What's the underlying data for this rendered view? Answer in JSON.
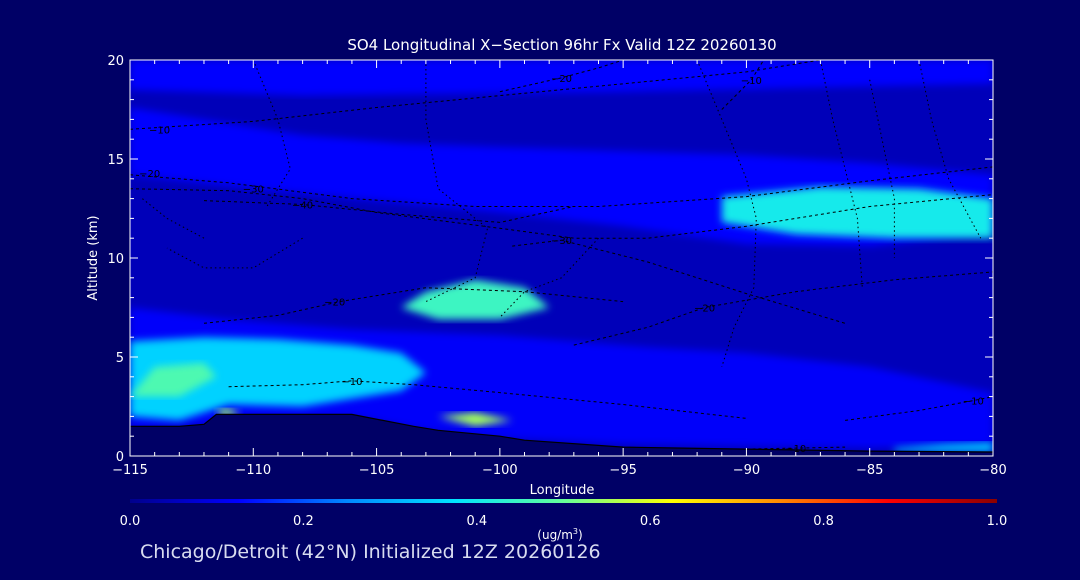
{
  "caption": "Chicago/Detroit (42°N) Initialized 12Z 20260126",
  "colors": {
    "background": "#000066",
    "axis": "#ffffff",
    "contour": "#000000"
  },
  "chart_data": {
    "type": "heatmap",
    "title": "SO4 Longitudinal X−Section 96hr  Fx Valid 12Z 20260130",
    "xlabel": "Longitude",
    "ylabel": "Altitude (km)",
    "xlim": [
      -115,
      -80
    ],
    "ylim": [
      0,
      20
    ],
    "x_ticks": [
      -115,
      -110,
      -105,
      -100,
      -95,
      -90,
      -85,
      -80
    ],
    "x_tick_labels": [
      "−115",
      "−110",
      "−105",
      "−100",
      "−95",
      "−90",
      "−85",
      "−80"
    ],
    "y_ticks": [
      0,
      5,
      10,
      15,
      20
    ],
    "y_tick_labels": [
      "0",
      "5",
      "10",
      "15",
      "20"
    ],
    "colorbar": {
      "min": 0.0,
      "max": 1.0,
      "tick_values": [
        0.0,
        0.2,
        0.4,
        0.6,
        0.8,
        1.0
      ],
      "tick_labels": [
        "0.0",
        "0.2",
        "0.4",
        "0.6",
        "0.8",
        "1.0"
      ],
      "unit_prefix": "(ug/m",
      "unit_sup": "3",
      "unit_suffix": ")",
      "colormap": [
        "#00008b",
        "#0000ff",
        "#0088ff",
        "#00e5ff",
        "#66ff99",
        "#ffff00",
        "#ff8800",
        "#ff0000",
        "#8b0000"
      ]
    },
    "field_regions": [
      {
        "name": "surface",
        "value": 0.05,
        "points": [
          [
            -115,
            0
          ],
          [
            -80,
            0
          ],
          [
            -80,
            20
          ],
          [
            -115,
            20
          ]
        ]
      },
      {
        "name": "upper-layer",
        "value": 0.13,
        "points": [
          [
            -115,
            20
          ],
          [
            -80,
            20
          ],
          [
            -80,
            18.8
          ],
          [
            -95,
            18.4
          ],
          [
            -108,
            18.2
          ],
          [
            -115,
            18.5
          ]
        ]
      },
      {
        "name": "mid-band",
        "value": 0.13,
        "points": [
          [
            -115,
            17.6
          ],
          [
            -112,
            17
          ],
          [
            -108,
            16.2
          ],
          [
            -104,
            15.8
          ],
          [
            -100,
            15.6
          ],
          [
            -95,
            15.4
          ],
          [
            -90,
            15.2
          ],
          [
            -85,
            14.8
          ],
          [
            -80,
            14.2
          ],
          [
            -80,
            11.3
          ],
          [
            -85,
            10.6
          ],
          [
            -90,
            10.7
          ],
          [
            -95,
            11.6
          ],
          [
            -100,
            12.3
          ],
          [
            -105,
            12.9
          ],
          [
            -110,
            13.5
          ],
          [
            -115,
            14.2
          ]
        ]
      },
      {
        "name": "lower-layer",
        "value": 0.12,
        "points": [
          [
            -115,
            7.5
          ],
          [
            -111,
            6.9
          ],
          [
            -106,
            6.4
          ],
          [
            -100,
            6.1
          ],
          [
            -97,
            5.8
          ],
          [
            -94,
            5.5
          ],
          [
            -90,
            5.2
          ],
          [
            -85,
            4.5
          ],
          [
            -80,
            3.2
          ],
          [
            -80,
            0.5
          ],
          [
            -85,
            0.4
          ],
          [
            -90,
            0.5
          ],
          [
            -95,
            0.6
          ],
          [
            -100,
            0.9
          ],
          [
            -103,
            1.3
          ],
          [
            -106,
            2.0
          ],
          [
            -110,
            2.0
          ],
          [
            -112,
            1.6
          ],
          [
            -115,
            1.4
          ]
        ]
      },
      {
        "name": "west-plume",
        "value": 0.35,
        "points": [
          [
            -115,
            5.8
          ],
          [
            -112,
            6.0
          ],
          [
            -109,
            5.9
          ],
          [
            -106,
            5.6
          ],
          [
            -104,
            5.2
          ],
          [
            -103,
            4.2
          ],
          [
            -104,
            3.3
          ],
          [
            -108,
            2.5
          ],
          [
            -111,
            2.6
          ],
          [
            -113,
            1.8
          ],
          [
            -115,
            2.0
          ]
        ]
      },
      {
        "name": "upper-jet-core",
        "value": 0.4,
        "points": [
          [
            -91,
            13.1
          ],
          [
            -87,
            13.6
          ],
          [
            -83,
            13.5
          ],
          [
            -80,
            13.0
          ],
          [
            -80,
            11.0
          ],
          [
            -84,
            11.0
          ],
          [
            -88,
            11.2
          ],
          [
            -91,
            11.8
          ]
        ]
      },
      {
        "name": "mid-plume",
        "value": 0.45,
        "points": [
          [
            -103,
            8.3
          ],
          [
            -101,
            8.9
          ],
          [
            -99,
            8.5
          ],
          [
            -98,
            7.5
          ],
          [
            -100,
            6.9
          ],
          [
            -102.5,
            6.9
          ],
          [
            -104,
            7.5
          ]
        ]
      },
      {
        "name": "west-core",
        "value": 0.47,
        "points": [
          [
            -115,
            3.0
          ],
          [
            -114,
            4.5
          ],
          [
            -112,
            4.7
          ],
          [
            -111.5,
            4.0
          ],
          [
            -113,
            3.0
          ]
        ]
      },
      {
        "name": "near-ground-peak",
        "value": 0.55,
        "points": [
          [
            -102.5,
            2.0
          ],
          [
            -101,
            2.2
          ],
          [
            -99.5,
            1.8
          ],
          [
            -101,
            1.5
          ]
        ]
      },
      {
        "name": "west-ground-peak",
        "value": 0.55,
        "points": [
          [
            -111.5,
            2.3
          ],
          [
            -111,
            2.4
          ],
          [
            -110.5,
            2.1
          ],
          [
            -111.3,
            2.0
          ]
        ]
      },
      {
        "name": "east-ground-layer",
        "value": 0.33,
        "points": [
          [
            -84,
            0.4
          ],
          [
            -82,
            0.6
          ],
          [
            -80,
            0.7
          ],
          [
            -80,
            0.2
          ],
          [
            -84,
            0.2
          ]
        ]
      }
    ],
    "terrain": {
      "x": [
        -115,
        -113,
        -112,
        -111.5,
        -110,
        -106,
        -103.5,
        -102.5,
        -100,
        -99,
        -95,
        -90,
        -85,
        -80
      ],
      "y": [
        1.5,
        1.5,
        1.6,
        2.1,
        2.1,
        2.1,
        1.5,
        1.3,
        1.0,
        0.8,
        0.45,
        0.35,
        0.25,
        0.2
      ]
    },
    "temperature_contours": [
      {
        "label": "−10",
        "label_at": [
          -113.8,
          16.5
        ],
        "points": [
          [
            -115,
            16.5
          ],
          [
            -110,
            16.9
          ],
          [
            -105,
            17.6
          ],
          [
            -100,
            18.2
          ],
          [
            -95,
            18.8
          ],
          [
            -90,
            19.4
          ],
          [
            -87,
            20
          ]
        ]
      },
      {
        "label": "−20",
        "label_at": [
          -114.2,
          14.3
        ],
        "points": [
          [
            -115,
            14.2
          ],
          [
            -111,
            13.8
          ],
          [
            -106,
            13.0
          ],
          [
            -101,
            12.6
          ],
          [
            -96,
            12.6
          ],
          [
            -90,
            13.1
          ],
          [
            -85,
            13.9
          ],
          [
            -80,
            14.6
          ]
        ]
      },
      {
        "label": "−30",
        "label_at": [
          -110,
          13.5
        ],
        "points": [
          [
            -115,
            13.5
          ],
          [
            -111,
            13.4
          ],
          [
            -108,
            13.0
          ],
          [
            -105,
            12.3
          ],
          [
            -100,
            11.5
          ],
          [
            -97,
            11.0
          ],
          [
            -94,
            11.0
          ],
          [
            -90,
            11.6
          ],
          [
            -85,
            12.6
          ],
          [
            -80,
            13.2
          ]
        ]
      },
      {
        "label": "−40",
        "label_at": [
          -108,
          12.7
        ],
        "points": [
          [
            -112,
            12.9
          ],
          [
            -108,
            12.7
          ],
          [
            -104,
            12.2
          ],
          [
            -100,
            11.8
          ],
          [
            -97,
            12.6
          ]
        ]
      },
      {
        "label": "−30",
        "label_at": [
          -97.5,
          10.9
        ],
        "points": [
          [
            -99.5,
            10.6
          ],
          [
            -97.5,
            10.9
          ],
          [
            -94,
            9.8
          ],
          [
            -90,
            8.2
          ],
          [
            -86,
            6.7
          ]
        ]
      },
      {
        "label": "−20",
        "label_at": [
          -106.7,
          7.8
        ],
        "points": [
          [
            -112,
            6.7
          ],
          [
            -109,
            7.1
          ],
          [
            -106.5,
            7.8
          ],
          [
            -103,
            8.5
          ],
          [
            -99,
            8.3
          ],
          [
            -95,
            7.8
          ]
        ]
      },
      {
        "label": "−20",
        "label_at": [
          -91.7,
          7.5
        ],
        "points": [
          [
            -97,
            5.6
          ],
          [
            -94,
            6.5
          ],
          [
            -91.7,
            7.5
          ],
          [
            -88,
            8.3
          ],
          [
            -84,
            8.9
          ],
          [
            -80,
            9.3
          ]
        ]
      },
      {
        "label": "−10",
        "label_at": [
          -106,
          3.8
        ],
        "points": [
          [
            -111,
            3.5
          ],
          [
            -108,
            3.6
          ],
          [
            -106,
            3.8
          ],
          [
            -103.5,
            3.6
          ],
          [
            -100,
            3.2
          ],
          [
            -95,
            2.6
          ],
          [
            -90,
            1.9
          ]
        ]
      },
      {
        "label": "−10",
        "label_at": [
          -80.8,
          2.8
        ],
        "points": [
          [
            -86,
            1.8
          ],
          [
            -83,
            2.3
          ],
          [
            -80.8,
            2.8
          ],
          [
            -80,
            3.0
          ]
        ]
      },
      {
        "label": "−20",
        "label_at": [
          -97.5,
          19.1
        ],
        "points": [
          [
            -100,
            18.4
          ],
          [
            -97.5,
            19.1
          ],
          [
            -96,
            19.6
          ],
          [
            -95,
            20
          ]
        ]
      },
      {
        "label": "−10",
        "label_at": [
          -89.8,
          19.0
        ],
        "points": [
          [
            -91,
            17.5
          ],
          [
            -89.8,
            19.0
          ],
          [
            -89.3,
            20
          ]
        ]
      },
      {
        "label": "−10",
        "label_at": [
          -88,
          0.4
        ],
        "points": [
          [
            -90,
            0.35
          ],
          [
            -88,
            0.4
          ],
          [
            -86,
            0.45
          ]
        ]
      }
    ],
    "dotted_contours": [
      {
        "points": [
          [
            -110,
            20
          ],
          [
            -109,
            17
          ],
          [
            -108.5,
            14.5
          ],
          [
            -109.5,
            12.5
          ]
        ]
      },
      {
        "points": [
          [
            -103,
            20
          ],
          [
            -103,
            17
          ],
          [
            -102.5,
            13.5
          ],
          [
            -100.5,
            11.5
          ],
          [
            -101,
            9
          ],
          [
            -103,
            7.8
          ]
        ]
      },
      {
        "points": [
          [
            -92,
            20
          ],
          [
            -91,
            17
          ],
          [
            -90,
            14
          ],
          [
            -89.6,
            12
          ],
          [
            -89.7,
            8.5
          ],
          [
            -90.5,
            6.5
          ],
          [
            -91,
            4.5
          ]
        ]
      },
      {
        "points": [
          [
            -87,
            20
          ],
          [
            -86.5,
            17
          ],
          [
            -86,
            14.5
          ],
          [
            -85.5,
            12
          ],
          [
            -85.3,
            8.5
          ]
        ]
      },
      {
        "points": [
          [
            -85,
            19
          ],
          [
            -84.5,
            16
          ],
          [
            -84,
            13
          ],
          [
            -84,
            10
          ]
        ]
      },
      {
        "points": [
          [
            -83,
            20
          ],
          [
            -82.5,
            17
          ],
          [
            -81.8,
            14
          ],
          [
            -80.5,
            11
          ]
        ]
      },
      {
        "points": [
          [
            -96,
            11
          ],
          [
            -97.5,
            9
          ],
          [
            -99,
            8.3
          ],
          [
            -100,
            7
          ]
        ]
      },
      {
        "points": [
          [
            -108,
            11
          ],
          [
            -110,
            9.5
          ],
          [
            -112,
            9.5
          ],
          [
            -113.5,
            10.5
          ]
        ]
      },
      {
        "points": [
          [
            -112,
            11
          ],
          [
            -113.5,
            12
          ],
          [
            -114.5,
            13
          ]
        ]
      }
    ]
  }
}
